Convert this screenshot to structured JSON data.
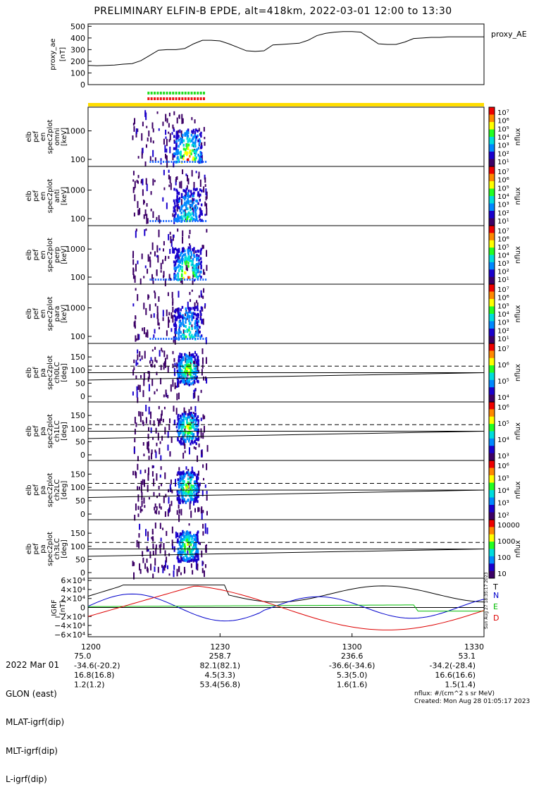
{
  "title": "PRELIMINARY ELFIN-B EPDE, alt=418km, 2022-03-01 12:00 to 13:30",
  "colors": {
    "indicator_green": "#22dd22",
    "indicator_red": "#ee1111",
    "indicator_yellow": "#ffdd00",
    "T": "#000000",
    "N": "#0000cc",
    "E": "#00bb00",
    "D": "#dd0000"
  },
  "chart_data": [
    {
      "type": "line",
      "name": "proxy_ae",
      "ylabel": [
        "proxy_ae",
        "[nT]"
      ],
      "legend": "proxy_AE",
      "yticks": [
        "500",
        "400",
        "300",
        "200",
        "100",
        "0"
      ],
      "ylim": [
        0,
        520
      ],
      "x_minutes": [
        0,
        2,
        4,
        6,
        8,
        10,
        12,
        14,
        16,
        18,
        20,
        22,
        24,
        26,
        28,
        30,
        32,
        34,
        36,
        38,
        40,
        42,
        44,
        46,
        48,
        50,
        52,
        54,
        56,
        58,
        60,
        62,
        64,
        66,
        68,
        70,
        72,
        74,
        76,
        78,
        80,
        82,
        84,
        86,
        88,
        90
      ],
      "values": [
        165,
        162,
        165,
        168,
        175,
        180,
        205,
        250,
        295,
        300,
        300,
        310,
        350,
        380,
        380,
        375,
        350,
        320,
        290,
        285,
        290,
        340,
        345,
        350,
        355,
        380,
        420,
        440,
        450,
        455,
        455,
        450,
        400,
        350,
        345,
        345,
        365,
        395,
        400,
        405,
        405,
        410,
        410,
        410,
        410,
        410
      ]
    },
    {
      "type": "heatmap",
      "name": "pef_en_spec2plot_omni",
      "ylabel": [
        "elb",
        "pef",
        "en",
        "spec2plot",
        "omni",
        "[keV]"
      ],
      "yticks": [
        "1000",
        "100"
      ],
      "cb_label": "nflux",
      "cb_ticks": [
        "10⁷",
        "10⁶",
        "10⁵",
        "10⁴",
        "10³",
        "10²",
        "10¹"
      ]
    },
    {
      "type": "heatmap",
      "name": "pef_en_spec2plot_anti",
      "ylabel": [
        "elb",
        "pef",
        "en",
        "spec2plot",
        "anti",
        "[keV]"
      ],
      "yticks": [
        "1000",
        "100"
      ],
      "cb_label": "nflux",
      "cb_ticks": [
        "10⁷",
        "10⁶",
        "10⁵",
        "10⁴",
        "10³",
        "10²",
        "10¹"
      ]
    },
    {
      "type": "heatmap",
      "name": "pef_en_spec2plot_perp",
      "ylabel": [
        "elb",
        "pef",
        "en",
        "spec2plot",
        "perp",
        "[keV]"
      ],
      "yticks": [
        "1000",
        "100"
      ],
      "cb_label": "nflux",
      "cb_ticks": [
        "10⁷",
        "10⁶",
        "10⁵",
        "10⁴",
        "10³",
        "10²",
        "10¹"
      ]
    },
    {
      "type": "heatmap",
      "name": "pef_en_spec2plot_para",
      "ylabel": [
        "elb",
        "pef",
        "en",
        "spec2plot",
        "para",
        "[keV]"
      ],
      "yticks": [
        "1000",
        "100"
      ],
      "cb_label": "nflux",
      "cb_ticks": [
        "10⁷",
        "10⁶",
        "10⁵",
        "10⁴",
        "10³",
        "10²",
        "10¹"
      ]
    },
    {
      "type": "heatmap",
      "name": "pef_pa_spec2plot_ch0LC",
      "ylabel": [
        "elb",
        "pef",
        "pa",
        "spec2plot",
        "ch0LC",
        "[deg]"
      ],
      "yticks": [
        "150",
        "100",
        "50",
        "0"
      ],
      "cb_label": "nflux",
      "cb_ticks": [
        "10⁷",
        "10⁶",
        "10⁵",
        "10⁴"
      ]
    },
    {
      "type": "heatmap",
      "name": "pef_pa_spec2plot_ch1LC",
      "ylabel": [
        "elb",
        "pef",
        "pa",
        "spec2plot",
        "ch1LC",
        "[deg]"
      ],
      "yticks": [
        "150",
        "100",
        "50",
        "0"
      ],
      "cb_label": "nflux",
      "cb_ticks": [
        "10⁶",
        "10⁵",
        "10⁴",
        "10³"
      ]
    },
    {
      "type": "heatmap",
      "name": "pef_pa_spec2plot_ch2LC",
      "ylabel": [
        "elb",
        "pef",
        "pa",
        "spec2plot",
        "ch2LC",
        "[deg]"
      ],
      "yticks": [
        "150",
        "100",
        "50",
        "0"
      ],
      "cb_label": "nflux",
      "cb_ticks": [
        "10⁶",
        "10⁵",
        "10⁴",
        "10³",
        "10²"
      ]
    },
    {
      "type": "heatmap",
      "name": "pef_pa_spec2plot_ch3LC",
      "ylabel": [
        "elb",
        "pef",
        "pa",
        "spec2plot",
        "ch3LC",
        "[deg]"
      ],
      "yticks": [
        "150",
        "100",
        "50",
        "0"
      ],
      "cb_label": "nflux",
      "cb_ticks": [
        "10000",
        "1000",
        "100",
        "10"
      ]
    },
    {
      "type": "line",
      "name": "igrf",
      "ylabel": [
        "IGRF",
        "[nT]"
      ],
      "yticks": [
        "6×10⁴",
        "4×10⁴",
        "2×10⁴",
        "0",
        "−2×10⁴",
        "−4×10⁴",
        "−6×10⁴"
      ],
      "legend": [
        "T",
        "N",
        "E",
        "D"
      ],
      "side_note": "Sun Aug 27 18:35:17 2023"
    }
  ],
  "xaxis": {
    "ticks": [
      "1200",
      "1230",
      "1300",
      "1330"
    ],
    "rows": [
      {
        "label": "2022 Mar 01",
        "values": [
          "",
          "",
          "",
          ""
        ]
      },
      {
        "label": "GLON (east)",
        "values": [
          "75.0",
          "258.7",
          "236.6",
          "53.1"
        ]
      },
      {
        "label": "MLAT-igrf(dip)",
        "values": [
          "-34.6(-20.2)",
          "82.1(82.1)",
          "-36.6(-34.6)",
          "-34.2(-28.4)"
        ]
      },
      {
        "label": "MLT-igrf(dip)",
        "values": [
          "16.8(16.8)",
          "4.5(3.3)",
          "5.3(5.0)",
          "16.6(16.6)"
        ]
      },
      {
        "label": "L-igrf(dip)",
        "values": [
          "1.2(1.2)",
          "53.4(56.8)",
          "1.6(1.6)",
          "1.5(1.4)"
        ]
      }
    ]
  },
  "footer": {
    "units": "nflux: #/(cm^2 s sr MeV)",
    "created": "Created: Mon Aug 28 01:05:17 2023"
  }
}
